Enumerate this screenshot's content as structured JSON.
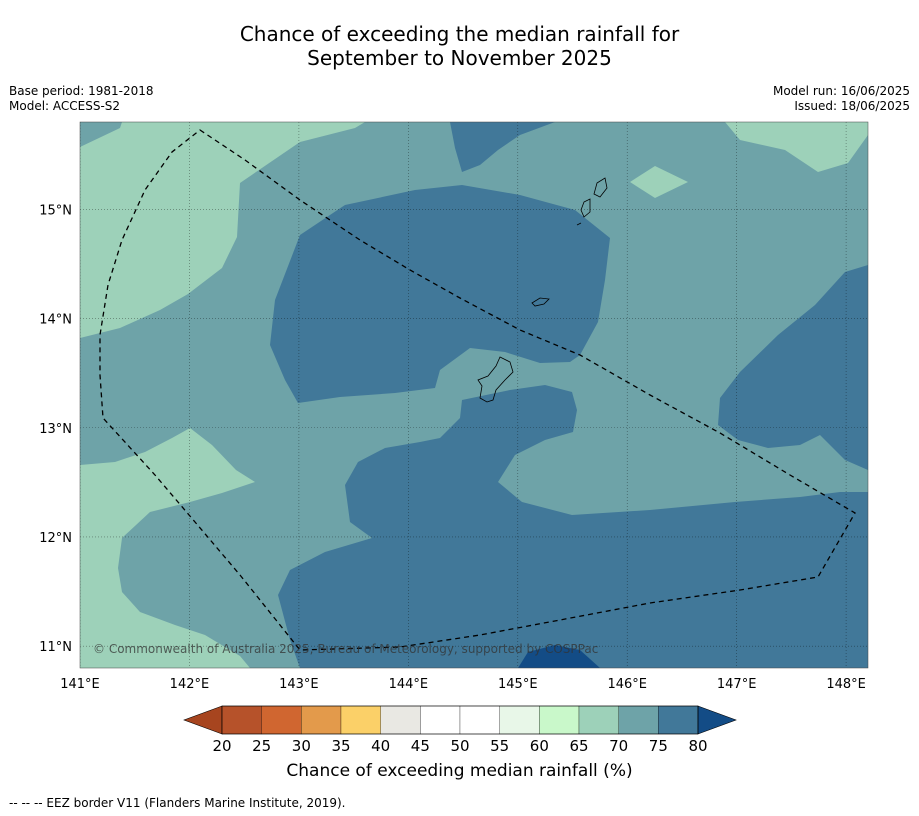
{
  "header": {
    "title_line1": "Chance of exceeding the median rainfall for",
    "title_line2": "September to November 2025"
  },
  "meta": {
    "base_period": "Base period: 1981-2018",
    "model": "Model: ACCESS-S2",
    "model_run": "Model run: 16/06/2025",
    "issued": "Issued: 18/06/2025"
  },
  "map": {
    "lon_ticks": [
      "141°E",
      "142°E",
      "143°E",
      "144°E",
      "145°E",
      "146°E",
      "147°E",
      "148°E"
    ],
    "lat_ticks": [
      "15°N",
      "14°N",
      "13°N",
      "12°N",
      "11°N"
    ],
    "extent": {
      "lon_min": 141.0,
      "lon_max": 148.2,
      "lat_min": 10.8,
      "lat_max": 15.8
    },
    "grid": true,
    "copyright": "© Commonwealth of Australia 2025, Bureau of Meteorology, supported by COSPPac",
    "class_colors": {
      "65-70": "#9dd1b9",
      "70-75": "#6ea3a8",
      "75-80": "#417899",
      "80+": "#134c86"
    }
  },
  "colorbar": {
    "labels": [
      "20",
      "25",
      "30",
      "35",
      "40",
      "45",
      "50",
      "55",
      "60",
      "65",
      "70",
      "75",
      "80"
    ],
    "colors": [
      "#a7451f",
      "#b6522a",
      "#d06630",
      "#e39a4b",
      "#fbd068",
      "#e9e8e3",
      "#ffffff",
      "#ffffff",
      "#e8f7e8",
      "#c9f8ca",
      "#9dd1b9",
      "#6ea3a8",
      "#417899",
      "#134c86"
    ],
    "title": "Chance of exceeding median rainfall (%)"
  },
  "footer": {
    "legend": "--  --  -- EEZ border V11 (Flanders Marine Institute, 2019)."
  }
}
